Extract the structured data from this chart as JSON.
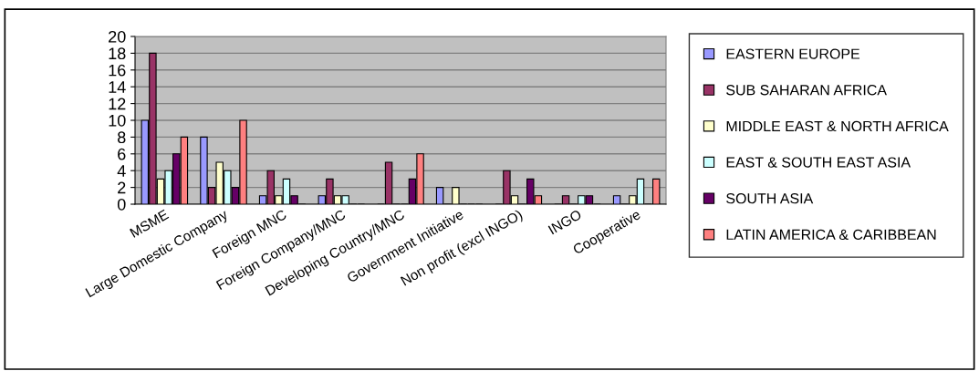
{
  "chart_data": {
    "type": "bar",
    "categories": [
      "MSME",
      "Large Domestic Company",
      "Foreign MNC",
      "Foreign Company/MNC",
      "Developing Country/MNC",
      "Government Initiative",
      "Non profit (excl INGO)",
      "INGO",
      "Cooperative"
    ],
    "series": [
      {
        "name": "EASTERN EUROPE",
        "color": "#9999ff",
        "values": [
          10,
          8,
          1,
          1,
          0,
          2,
          0,
          0,
          1
        ]
      },
      {
        "name": "SUB SAHARAN AFRICA",
        "color": "#993366",
        "values": [
          18,
          2,
          4,
          3,
          5,
          0,
          4,
          1,
          0
        ]
      },
      {
        "name": "MIDDLE EAST & NORTH AFRICA",
        "color": "#ffffcc",
        "values": [
          3,
          5,
          1,
          1,
          0,
          2,
          1,
          0,
          1
        ]
      },
      {
        "name": "EAST & SOUTH EAST ASIA",
        "color": "#ccffff",
        "values": [
          4,
          4,
          3,
          1,
          0,
          0,
          0,
          1,
          3
        ]
      },
      {
        "name": "SOUTH ASIA",
        "color": "#660066",
        "values": [
          6,
          2,
          1,
          0,
          3,
          0,
          3,
          1,
          0
        ]
      },
      {
        "name": "LATIN AMERICA & CARIBBEAN",
        "color": "#ff8080",
        "values": [
          8,
          10,
          0,
          0,
          6,
          0,
          1,
          0,
          3
        ]
      }
    ],
    "ylim": [
      0,
      20
    ],
    "yticks": [
      0,
      2,
      4,
      6,
      8,
      10,
      12,
      14,
      16,
      18,
      20
    ],
    "grid": "y",
    "legend": "right"
  }
}
